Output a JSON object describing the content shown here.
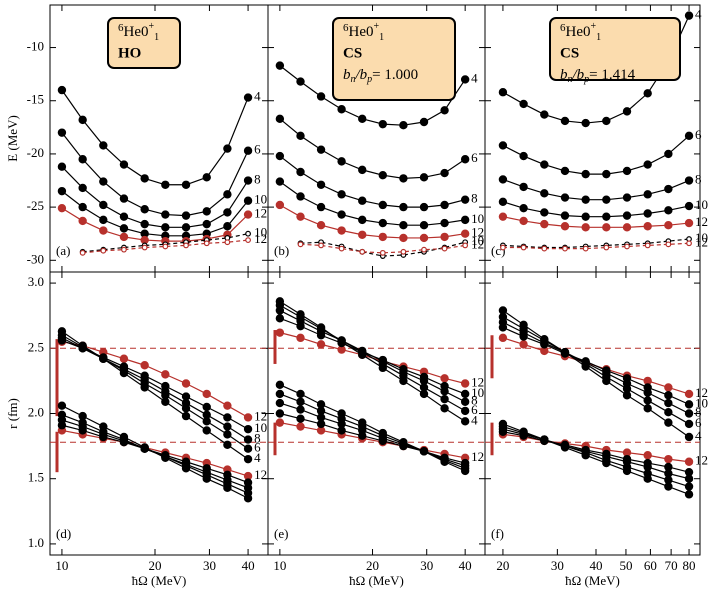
{
  "chart_data": [
    {
      "type": "line",
      "panel": "(a)",
      "ylabel": "E (MeV)",
      "xlog": true,
      "xlim": [
        9.15,
        46.4
      ],
      "xticks": [
        10,
        20,
        30,
        40
      ],
      "ylim": [
        -31.1,
        -6
      ],
      "yticks": [
        -30,
        -25,
        -20,
        -15,
        -10
      ],
      "x": [
        10,
        11.67,
        13.61,
        15.87,
        18.52,
        21.6,
        25.2,
        29.4,
        34.29,
        40
      ],
      "box": {
        "mass": "6",
        "nucleus": "He",
        "state": "0",
        "state_sup": "+",
        "state_sub": "1",
        "method": "HO"
      },
      "series": [
        {
          "name": "4",
          "color": "#000000",
          "values": [
            -14,
            -16.8,
            -19.2,
            -21,
            -22.3,
            -22.9,
            -22.9,
            -22.2,
            -19.5,
            -14.7
          ]
        },
        {
          "name": "6",
          "color": "#000000",
          "values": [
            -18,
            -20.5,
            -22.6,
            -24.2,
            -25.2,
            -25.7,
            -25.8,
            -25.4,
            -23.8,
            -19.7
          ]
        },
        {
          "name": "8",
          "color": "#000000",
          "values": [
            -21.2,
            -23.2,
            -24.8,
            -25.9,
            -26.6,
            -26.9,
            -26.9,
            -26.6,
            -25.5,
            -22.5
          ]
        },
        {
          "name": "10",
          "color": "#000000",
          "values": [
            -23.5,
            -25,
            -26.2,
            -27,
            -27.5,
            -27.7,
            -27.7,
            -27.5,
            -26.8,
            -24.4
          ]
        },
        {
          "name": "12",
          "color": "#b7312c",
          "values": [
            -25.1,
            -26.3,
            -27.2,
            -27.8,
            -28.1,
            -28.2,
            -28.2,
            -28,
            -27.6,
            -25.7
          ]
        },
        {
          "name": "10",
          "color": "#000000",
          "dashed": true,
          "open": true,
          "values": [
            null,
            -29.2,
            -29,
            -28.8,
            -28.6,
            -28.5,
            -28.3,
            -28.1,
            -27.9,
            -27.5
          ]
        },
        {
          "name": "12",
          "color": "#b7312c",
          "dashed": true,
          "open": true,
          "values": [
            null,
            -29.3,
            -29.1,
            -29,
            -28.8,
            -28.7,
            -28.6,
            -28.4,
            -28.3,
            -28.1
          ]
        }
      ]
    },
    {
      "type": "line",
      "panel": "(b)",
      "xlog": true,
      "xlim": [
        9.15,
        46.4
      ],
      "xticks": [
        10,
        20,
        30,
        40
      ],
      "ylim": [
        -31.1,
        -6
      ],
      "yticks": [
        -30,
        -25,
        -20,
        -15,
        -10
      ],
      "ytick_labels": false,
      "x": [
        10,
        11.67,
        13.61,
        15.87,
        18.52,
        21.6,
        25.2,
        29.4,
        34.29,
        40
      ],
      "box": {
        "mass": "6",
        "nucleus": "He",
        "state": "0",
        "state_sup": "+",
        "state_sub": "1",
        "method": "CS",
        "ratio_b": "b",
        "ratio_n": "n",
        "ratio_mid": "/b",
        "ratio_p": "p",
        "ratio_value": "= 1.000"
      },
      "series": [
        {
          "name": "4",
          "color": "#000000",
          "values": [
            -11.7,
            -13.2,
            -14.6,
            -15.8,
            -16.7,
            -17.2,
            -17.3,
            -17,
            -15.9,
            -13
          ]
        },
        {
          "name": "6",
          "color": "#000000",
          "values": [
            -16.7,
            -18.3,
            -19.6,
            -20.7,
            -21.5,
            -22,
            -22.3,
            -22.2,
            -21.8,
            -20.5
          ]
        },
        {
          "name": "8",
          "color": "#000000",
          "values": [
            -20.2,
            -21.7,
            -22.9,
            -23.8,
            -24.4,
            -24.8,
            -25,
            -25,
            -24.8,
            -24.3
          ]
        },
        {
          "name": "10",
          "color": "#000000",
          "values": [
            -22.6,
            -24,
            -25,
            -25.7,
            -26.2,
            -26.5,
            -26.7,
            -26.7,
            -26.5,
            -26.2
          ]
        },
        {
          "name": "12",
          "color": "#b7312c",
          "values": [
            -24.8,
            -25.9,
            -26.7,
            -27.2,
            -27.6,
            -27.8,
            -27.9,
            -27.9,
            -27.8,
            -27.5
          ]
        },
        {
          "name": "10",
          "color": "#000000",
          "dashed": true,
          "open": true,
          "values": [
            null,
            -28.4,
            -28.3,
            -28.7,
            -29.2,
            -29.6,
            -29.5,
            -29.2,
            -28.8,
            -28.3
          ]
        },
        {
          "name": "12",
          "color": "#b7312c",
          "dashed": true,
          "open": true,
          "values": [
            null,
            -28.5,
            -28.6,
            -28.9,
            -29.2,
            -29.3,
            -29.2,
            -29,
            -28.9,
            -28.6
          ]
        }
      ]
    },
    {
      "type": "line",
      "panel": "(c)",
      "xlog": true,
      "xlim": [
        17.5,
        86.8
      ],
      "xticks": [
        20,
        30,
        40,
        50,
        60,
        70,
        80
      ],
      "ylim": [
        -31.1,
        -6
      ],
      "yticks": [
        -30,
        -25,
        -20,
        -15,
        -10
      ],
      "ytick_labels": false,
      "x": [
        20,
        23.33,
        27.22,
        31.75,
        37.04,
        43.2,
        50.4,
        58.79,
        68.58,
        80
      ],
      "box": {
        "mass": "6",
        "nucleus": "He",
        "state": "0",
        "state_sup": "+",
        "state_sub": "1",
        "method": "CS",
        "ratio_b": "b",
        "ratio_n": "n",
        "ratio_mid": "/b",
        "ratio_p": "p",
        "ratio_value": "= 1.414"
      },
      "series": [
        {
          "name": "4",
          "color": "#000000",
          "values": [
            -14.2,
            -15.3,
            -16.3,
            -16.9,
            -17.1,
            -16.9,
            -16,
            -14.3,
            -11.3,
            -7
          ]
        },
        {
          "name": "6",
          "color": "#000000",
          "values": [
            -19.2,
            -20.2,
            -21,
            -21.6,
            -21.9,
            -21.9,
            -21.6,
            -21,
            -20,
            -18.3
          ]
        },
        {
          "name": "8",
          "color": "#000000",
          "values": [
            -22.4,
            -23.1,
            -23.7,
            -24.1,
            -24.3,
            -24.3,
            -24.1,
            -23.8,
            -23.3,
            -22.5
          ]
        },
        {
          "name": "10",
          "color": "#000000",
          "values": [
            -24.5,
            -25.1,
            -25.5,
            -25.8,
            -25.9,
            -25.9,
            -25.8,
            -25.6,
            -25.3,
            -24.9
          ]
        },
        {
          "name": "12",
          "color": "#b7312c",
          "values": [
            -25.9,
            -26.3,
            -26.6,
            -26.8,
            -26.9,
            -26.9,
            -26.9,
            -26.8,
            -26.7,
            -26.5
          ]
        },
        {
          "name": "10",
          "color": "#000000",
          "dashed": true,
          "open": true,
          "values": [
            -28.6,
            -28.7,
            -28.8,
            -28.8,
            -28.7,
            -28.6,
            -28.5,
            -28.4,
            -28.2,
            -28
          ]
        },
        {
          "name": "12",
          "color": "#b7312c",
          "dashed": true,
          "open": true,
          "values": [
            -28.8,
            -28.8,
            -28.9,
            -28.9,
            -28.9,
            -28.8,
            -28.7,
            -28.6,
            -28.5,
            -28.4
          ]
        }
      ]
    },
    {
      "type": "line",
      "panel": "(d)",
      "ylabel": "r (fm)",
      "xlabel": "ħΩ (MeV)",
      "xlog": true,
      "xlim": [
        9.15,
        46.4
      ],
      "xticks": [
        10,
        20,
        30,
        40
      ],
      "ylim": [
        0.915,
        3.085
      ],
      "yticks": [
        {
          "value": 1,
          "label": "1.0"
        },
        1.5,
        {
          "value": 2,
          "label": "2.0"
        },
        2.5,
        {
          "value": 3,
          "label": "3.0"
        }
      ],
      "x": [
        10,
        11.67,
        13.61,
        15.87,
        18.52,
        21.6,
        25.2,
        29.4,
        34.29,
        40
      ],
      "ref_lines": [
        2.5,
        1.78
      ],
      "ref_color": "#b7312c",
      "ref_bars": [
        [
          1.98,
          2.57
        ],
        [
          1.55,
          1.86
        ]
      ],
      "series": [
        {
          "name": "12",
          "color": "#b7312c",
          "values": [
            2.55,
            2.52,
            2.47,
            2.42,
            2.37,
            2.3,
            2.23,
            2.15,
            2.06,
            1.97
          ]
        },
        {
          "name": "10",
          "color": "#000000",
          "values": [
            2.56,
            2.5,
            2.43,
            2.36,
            2.29,
            2.21,
            2.13,
            2.05,
            1.97,
            1.88
          ]
        },
        {
          "name": "8",
          "color": "#000000",
          "values": [
            2.58,
            2.5,
            2.42,
            2.34,
            2.26,
            2.17,
            2.08,
            1.99,
            1.9,
            1.8
          ]
        },
        {
          "name": "6",
          "color": "#000000",
          "values": [
            2.6,
            2.51,
            2.42,
            2.33,
            2.23,
            2.14,
            2.04,
            1.94,
            1.84,
            1.73
          ]
        },
        {
          "name": "4",
          "color": "#000000",
          "values": [
            2.63,
            2.52,
            2.42,
            2.31,
            2.2,
            2.09,
            1.98,
            1.87,
            1.76,
            1.65
          ]
        },
        {
          "name": "12",
          "color": "#b7312c",
          "values": [
            1.87,
            1.84,
            1.81,
            1.78,
            1.74,
            1.7,
            1.66,
            1.62,
            1.57,
            1.52
          ]
        },
        {
          "color": "#000000",
          "values": [
            1.91,
            1.87,
            1.82,
            1.78,
            1.73,
            1.68,
            1.63,
            1.58,
            1.53,
            1.47
          ]
        },
        {
          "color": "#000000",
          "values": [
            1.95,
            1.9,
            1.84,
            1.79,
            1.73,
            1.67,
            1.61,
            1.55,
            1.49,
            1.43
          ]
        },
        {
          "color": "#000000",
          "values": [
            1.99,
            1.93,
            1.86,
            1.8,
            1.73,
            1.67,
            1.6,
            1.53,
            1.46,
            1.39
          ]
        },
        {
          "color": "#000000",
          "values": [
            2.06,
            1.98,
            1.9,
            1.82,
            1.74,
            1.66,
            1.58,
            1.5,
            1.43,
            1.35
          ]
        }
      ]
    },
    {
      "type": "line",
      "panel": "(e)",
      "xlabel": "ħΩ (MeV)",
      "xlog": true,
      "xlim": [
        9.15,
        46.4
      ],
      "xticks": [
        10,
        20,
        30,
        40
      ],
      "ylim": [
        0.915,
        3.085
      ],
      "yticks": [
        1,
        1.5,
        2,
        2.5,
        3
      ],
      "ytick_labels": false,
      "x": [
        10,
        11.67,
        13.61,
        15.87,
        18.52,
        21.6,
        25.2,
        29.4,
        34.29,
        40
      ],
      "ref_lines": [
        2.5,
        1.78
      ],
      "ref_color": "#b7312c",
      "ref_bars": [
        [
          2.38,
          2.64
        ],
        [
          1.68,
          1.93
        ]
      ],
      "series": [
        {
          "name": "12",
          "color": "#b7312c",
          "values": [
            2.62,
            2.58,
            2.53,
            2.49,
            2.45,
            2.4,
            2.36,
            2.32,
            2.27,
            2.23
          ]
        },
        {
          "name": "10",
          "color": "#000000",
          "values": [
            2.73,
            2.67,
            2.6,
            2.54,
            2.47,
            2.41,
            2.34,
            2.28,
            2.21,
            2.15
          ]
        },
        {
          "name": "8",
          "color": "#000000",
          "values": [
            2.79,
            2.71,
            2.63,
            2.56,
            2.48,
            2.4,
            2.32,
            2.25,
            2.17,
            2.09
          ]
        },
        {
          "name": "6",
          "color": "#000000",
          "values": [
            2.83,
            2.74,
            2.65,
            2.56,
            2.47,
            2.38,
            2.29,
            2.2,
            2.11,
            2.02
          ]
        },
        {
          "name": "4",
          "color": "#000000",
          "values": [
            2.86,
            2.76,
            2.66,
            2.55,
            2.45,
            2.35,
            2.25,
            2.15,
            2.04,
            1.94
          ]
        },
        {
          "name": "12",
          "color": "#b7312c",
          "values": [
            1.93,
            1.9,
            1.87,
            1.84,
            1.81,
            1.78,
            1.75,
            1.72,
            1.69,
            1.66
          ]
        },
        {
          "color": "#000000",
          "values": [
            2.0,
            1.96,
            1.92,
            1.87,
            1.83,
            1.79,
            1.75,
            1.71,
            1.66,
            1.62
          ]
        },
        {
          "color": "#000000",
          "values": [
            2.08,
            2.03,
            1.97,
            1.92,
            1.87,
            1.81,
            1.76,
            1.71,
            1.65,
            1.6
          ]
        },
        {
          "color": "#000000",
          "values": [
            2.15,
            2.09,
            2.02,
            1.96,
            1.9,
            1.83,
            1.77,
            1.71,
            1.64,
            1.58
          ]
        },
        {
          "color": "#000000",
          "values": [
            2.22,
            2.15,
            2.07,
            2.0,
            1.93,
            1.85,
            1.78,
            1.71,
            1.63,
            1.56
          ]
        }
      ]
    },
    {
      "type": "line",
      "panel": "(f)",
      "xlabel": "ħΩ (MeV)",
      "xlog": true,
      "xlim": [
        17.5,
        86.8
      ],
      "xticks": [
        20,
        30,
        40,
        50,
        60,
        70,
        80
      ],
      "ylim": [
        0.915,
        3.085
      ],
      "yticks": [
        1,
        1.5,
        2,
        2.5,
        3
      ],
      "ytick_labels": false,
      "x": [
        20,
        23.33,
        27.22,
        31.75,
        37.04,
        43.2,
        50.4,
        58.79,
        68.58,
        80
      ],
      "ref_lines": [
        2.5,
        1.78
      ],
      "ref_color": "#b7312c",
      "ref_bars": [
        [
          2.27,
          2.6
        ],
        [
          1.68,
          1.93
        ]
      ],
      "series": [
        {
          "name": "12",
          "color": "#b7312c",
          "values": [
            2.58,
            2.53,
            2.48,
            2.44,
            2.39,
            2.34,
            2.29,
            2.25,
            2.2,
            2.15
          ]
        },
        {
          "name": "10",
          "color": "#000000",
          "values": [
            2.66,
            2.59,
            2.53,
            2.46,
            2.4,
            2.33,
            2.27,
            2.2,
            2.14,
            2.07
          ]
        },
        {
          "name": "8",
          "color": "#000000",
          "values": [
            2.7,
            2.62,
            2.54,
            2.47,
            2.39,
            2.31,
            2.23,
            2.16,
            2.08,
            2.0
          ]
        },
        {
          "name": "6",
          "color": "#000000",
          "values": [
            2.74,
            2.65,
            2.56,
            2.47,
            2.38,
            2.28,
            2.19,
            2.1,
            2.01,
            1.92
          ]
        },
        {
          "name": "4",
          "color": "#000000",
          "values": [
            2.79,
            2.68,
            2.57,
            2.47,
            2.36,
            2.25,
            2.14,
            2.04,
            1.93,
            1.82
          ]
        },
        {
          "name": "12",
          "color": "#b7312c",
          "values": [
            1.84,
            1.82,
            1.79,
            1.77,
            1.75,
            1.72,
            1.7,
            1.68,
            1.65,
            1.63
          ]
        },
        {
          "color": "#000000",
          "values": [
            1.86,
            1.83,
            1.79,
            1.76,
            1.72,
            1.69,
            1.65,
            1.62,
            1.59,
            1.55
          ]
        },
        {
          "color": "#000000",
          "values": [
            1.88,
            1.84,
            1.8,
            1.75,
            1.71,
            1.67,
            1.63,
            1.59,
            1.54,
            1.5
          ]
        },
        {
          "color": "#000000",
          "values": [
            1.9,
            1.85,
            1.8,
            1.75,
            1.7,
            1.64,
            1.59,
            1.54,
            1.49,
            1.44
          ]
        },
        {
          "color": "#000000",
          "values": [
            1.92,
            1.86,
            1.8,
            1.74,
            1.68,
            1.62,
            1.56,
            1.5,
            1.44,
            1.38
          ]
        }
      ]
    }
  ]
}
